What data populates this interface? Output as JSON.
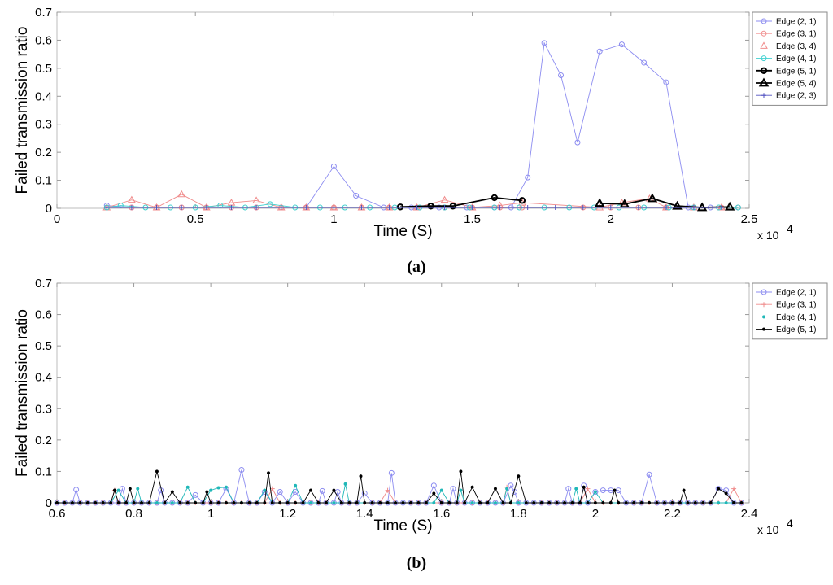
{
  "chart_data": [
    {
      "id": "a",
      "type": "line",
      "caption": "(a)",
      "xlabel": "Time (S)",
      "ylabel": "Failed transmission ratio",
      "x_exponent_label": "x 10",
      "x_exponent_power": "4",
      "xlim": [
        0,
        25000
      ],
      "ylim": [
        0,
        0.7
      ],
      "xticks": [
        0,
        5000,
        10000,
        15000,
        20000,
        25000
      ],
      "xtick_labels": [
        "0",
        "0.5",
        "1",
        "1.5",
        "2",
        "2.5"
      ],
      "yticks": [
        0,
        0.1,
        0.2,
        0.3,
        0.4,
        0.5,
        0.6,
        0.7
      ],
      "ytick_labels": [
        "0",
        "0.1",
        "0.2",
        "0.3",
        "0.4",
        "0.5",
        "0.6",
        "0.7"
      ],
      "legend_position": "outside-top-right",
      "series": [
        {
          "name": "Edge (2, 1)",
          "color": "#8c8cf0",
          "marker": "circle",
          "bold": false,
          "x": [
            1800,
            2700,
            3600,
            4500,
            5400,
            6300,
            7200,
            8100,
            9000,
            10000,
            10800,
            11800,
            12800,
            13800,
            14800,
            15800,
            16400,
            17000,
            17600,
            18200,
            18800,
            19600,
            20400,
            21200,
            22000,
            22800,
            23600,
            24600
          ],
          "y": [
            0.01,
            0.003,
            0.003,
            0.003,
            0.003,
            0.003,
            0.003,
            0.003,
            0.003,
            0.15,
            0.045,
            0.003,
            0.003,
            0.003,
            0.003,
            0.003,
            0.003,
            0.11,
            0.59,
            0.475,
            0.235,
            0.56,
            0.585,
            0.52,
            0.45,
            0.003,
            0.003,
            0.003
          ]
        },
        {
          "name": "Edge (3, 1)",
          "color": "#f08c8c",
          "marker": "circle",
          "bold": false,
          "x": [
            1800,
            2700,
            3600,
            4500,
            5400,
            6300,
            7200,
            8100,
            9000,
            10000,
            11000,
            12000,
            13000,
            14000,
            15000,
            16000,
            16800,
            19000,
            20000,
            21000,
            22000,
            23000,
            24000,
            24600
          ],
          "y": [
            0.003,
            0.003,
            0.003,
            0.003,
            0.003,
            0.003,
            0.003,
            0.003,
            0.003,
            0.003,
            0.003,
            0.003,
            0.003,
            0.003,
            0.003,
            0.003,
            0.003,
            0.003,
            0.003,
            0.003,
            0.003,
            0.003,
            0.003,
            0.003
          ]
        },
        {
          "name": "Edge (3, 4)",
          "color": "#f08c8c",
          "marker": "triangle",
          "bold": false,
          "x": [
            1800,
            2700,
            3600,
            4500,
            5400,
            6300,
            7200,
            8100,
            9000,
            10000,
            11000,
            12000,
            13000,
            14000,
            15000,
            16000,
            16800,
            19600,
            20400,
            21400,
            22000,
            23000,
            24000
          ],
          "y": [
            0.003,
            0.03,
            0.003,
            0.05,
            0.003,
            0.02,
            0.028,
            0.003,
            0.003,
            0.003,
            0.003,
            0.003,
            0.003,
            0.03,
            0.003,
            0.01,
            0.02,
            0.003,
            0.02,
            0.035,
            0.003,
            0.003,
            0.003
          ]
        },
        {
          "name": "Edge (4, 1)",
          "color": "#40d0d0",
          "marker": "circle",
          "bold": false,
          "x": [
            1800,
            2300,
            3200,
            4100,
            5000,
            5900,
            6800,
            7700,
            8600,
            9500,
            10400,
            11300,
            12200,
            13100,
            14000,
            14900,
            15800,
            16700,
            17600,
            18500,
            19400,
            20300,
            21200,
            22100,
            23000,
            23900,
            24600
          ],
          "y": [
            0.003,
            0.01,
            0.003,
            0.003,
            0.003,
            0.01,
            0.003,
            0.015,
            0.003,
            0.003,
            0.003,
            0.003,
            0.003,
            0.003,
            0.003,
            0.003,
            0.003,
            0.003,
            0.003,
            0.003,
            0.003,
            0.003,
            0.003,
            0.003,
            0.003,
            0.003,
            0.003
          ]
        },
        {
          "name": "Edge (5, 1)",
          "color": "#000000",
          "marker": "circle",
          "bold": true,
          "x": [
            12400,
            13500,
            14300,
            15800,
            16800
          ],
          "y": [
            0.005,
            0.008,
            0.008,
            0.038,
            0.028
          ]
        },
        {
          "name": "Edge (5, 4)",
          "color": "#000000",
          "marker": "triangle",
          "bold": true,
          "x": [
            19600,
            20500,
            21500,
            22400,
            23300,
            24300
          ],
          "y": [
            0.018,
            0.015,
            0.035,
            0.008,
            0.003,
            0.005
          ]
        },
        {
          "name": "Edge (2, 3)",
          "color": "#5050c0",
          "marker": "plus",
          "bold": false,
          "x": [
            1800,
            2700,
            3600,
            4500,
            5400,
            6300,
            7200,
            8100,
            9000,
            10000,
            11000,
            12000,
            13000,
            14000,
            15000,
            16000,
            17000,
            18000,
            19000,
            20000,
            21000,
            22000,
            23000,
            24000
          ],
          "y": [
            0.003,
            0.003,
            0.003,
            0.003,
            0.003,
            0.003,
            0.003,
            0.003,
            0.003,
            0.003,
            0.003,
            0.003,
            0.003,
            0.003,
            0.003,
            0.003,
            0.003,
            0.003,
            0.003,
            0.003,
            0.003,
            0.003,
            0.003,
            0.003
          ]
        }
      ]
    },
    {
      "id": "b",
      "type": "line",
      "caption": "(b)",
      "xlabel": "Time (S)",
      "ylabel": "Failed transmission ratio",
      "x_exponent_label": "x 10",
      "x_exponent_power": "4",
      "xlim": [
        6000,
        24000
      ],
      "ylim": [
        0,
        0.7
      ],
      "xticks": [
        6000,
        8000,
        10000,
        12000,
        14000,
        16000,
        18000,
        20000,
        22000,
        24000
      ],
      "xtick_labels": [
        "0.6",
        "0.8",
        "1",
        "1.2",
        "1.4",
        "1.6",
        "1.8",
        "2",
        "2.2",
        "2.4"
      ],
      "yticks": [
        0,
        0.1,
        0.2,
        0.3,
        0.4,
        0.5,
        0.6,
        0.7
      ],
      "ytick_labels": [
        "0",
        "0.1",
        "0.2",
        "0.3",
        "0.4",
        "0.5",
        "0.6",
        "0.7"
      ],
      "legend_position": "outside-top-right",
      "baseline_step": 200,
      "baseline_range": [
        6000,
        23800
      ],
      "series": [
        {
          "name": "Edge (2, 1)",
          "color": "#8c8cf0",
          "marker": "circle",
          "peaks": [
            [
              6500,
              0.042
            ],
            [
              7700,
              0.045
            ],
            [
              8700,
              0.04
            ],
            [
              9600,
              0.025
            ],
            [
              10400,
              0.045
            ],
            [
              10800,
              0.105
            ],
            [
              11400,
              0.035
            ],
            [
              11800,
              0.035
            ],
            [
              12200,
              0.035
            ],
            [
              12900,
              0.038
            ],
            [
              13300,
              0.035
            ],
            [
              14000,
              0.03
            ],
            [
              14700,
              0.095
            ],
            [
              15800,
              0.055
            ],
            [
              16300,
              0.045
            ],
            [
              17800,
              0.055
            ],
            [
              17900,
              0.035
            ],
            [
              19300,
              0.045
            ],
            [
              19700,
              0.055
            ],
            [
              20000,
              0.035
            ],
            [
              20200,
              0.04
            ],
            [
              20400,
              0.04
            ],
            [
              20600,
              0.04
            ],
            [
              21400,
              0.09
            ],
            [
              23200,
              0.045
            ],
            [
              23400,
              0.04
            ]
          ]
        },
        {
          "name": "Edge (3, 1)",
          "color": "#f08c8c",
          "marker": "plus",
          "peaks": [
            [
              7500,
              0.04
            ],
            [
              11600,
              0.045
            ],
            [
              14600,
              0.04
            ],
            [
              17700,
              0.05
            ],
            [
              19800,
              0.045
            ],
            [
              23600,
              0.045
            ]
          ]
        },
        {
          "name": "Edge (4, 1)",
          "color": "#20b8b8",
          "marker": "dot",
          "peaks": [
            [
              7600,
              0.04
            ],
            [
              8100,
              0.045
            ],
            [
              9400,
              0.05
            ],
            [
              10000,
              0.04
            ],
            [
              10200,
              0.048
            ],
            [
              10400,
              0.05
            ],
            [
              11400,
              0.04
            ],
            [
              12200,
              0.055
            ],
            [
              13500,
              0.06
            ],
            [
              16000,
              0.04
            ],
            [
              16500,
              0.04
            ],
            [
              17700,
              0.045
            ],
            [
              19500,
              0.045
            ],
            [
              20000,
              0.035
            ]
          ]
        },
        {
          "name": "Edge (5, 1)",
          "color": "#000000",
          "marker": "dot",
          "peaks": [
            [
              7500,
              0.04
            ],
            [
              7900,
              0.045
            ],
            [
              8600,
              0.1
            ],
            [
              9000,
              0.035
            ],
            [
              9900,
              0.035
            ],
            [
              11500,
              0.095
            ],
            [
              12600,
              0.04
            ],
            [
              13200,
              0.04
            ],
            [
              13900,
              0.085
            ],
            [
              15800,
              0.03
            ],
            [
              16500,
              0.1
            ],
            [
              16800,
              0.05
            ],
            [
              17400,
              0.045
            ],
            [
              18000,
              0.085
            ],
            [
              19700,
              0.05
            ],
            [
              20500,
              0.04
            ],
            [
              22300,
              0.04
            ],
            [
              23200,
              0.045
            ],
            [
              23400,
              0.03
            ]
          ]
        }
      ]
    }
  ]
}
